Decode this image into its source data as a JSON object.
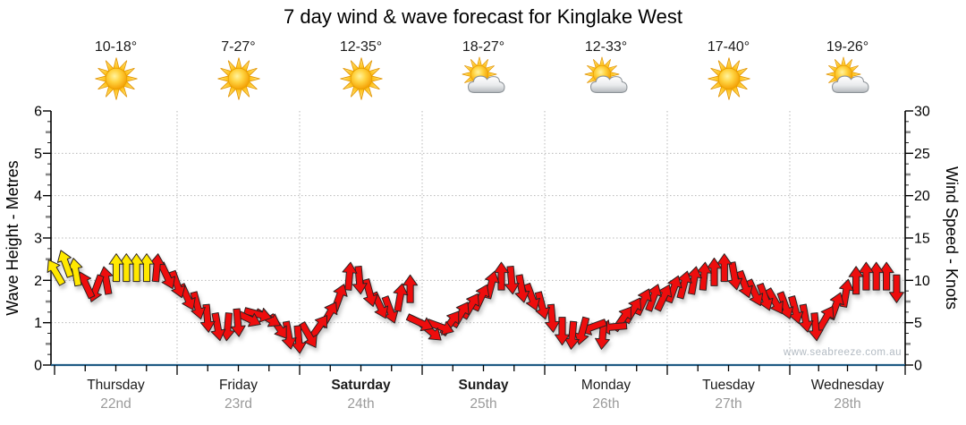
{
  "title": "7 day wind & wave forecast for Kinglake West",
  "watermark": "www.seabreeze.com.au",
  "days": [
    {
      "name": "Thursday",
      "date": "22nd",
      "temp": "10-18°",
      "icon": "sunny",
      "bold": false
    },
    {
      "name": "Friday",
      "date": "23rd",
      "temp": "7-27°",
      "icon": "sunny",
      "bold": false
    },
    {
      "name": "Saturday",
      "date": "24th",
      "temp": "12-35°",
      "icon": "sunny",
      "bold": true
    },
    {
      "name": "Sunday",
      "date": "25th",
      "temp": "18-27°",
      "icon": "partly-cloudy",
      "bold": true
    },
    {
      "name": "Monday",
      "date": "26th",
      "temp": "12-33°",
      "icon": "partly-cloudy",
      "bold": false
    },
    {
      "name": "Tuesday",
      "date": "27th",
      "temp": "17-40°",
      "icon": "sunny",
      "bold": false
    },
    {
      "name": "Wednesday",
      "date": "28th",
      "temp": "19-26°",
      "icon": "partly-cloudy",
      "bold": false
    }
  ],
  "axes": {
    "left": {
      "label": "Wave Height - Metres",
      "ticks": [
        "0",
        "1",
        "2",
        "3",
        "4",
        "5",
        "6"
      ]
    },
    "right": {
      "label": "Wind Speed - Knots",
      "ticks": [
        "0",
        "5",
        "10",
        "15",
        "20",
        "25",
        "30"
      ]
    }
  },
  "colors": {
    "arrow_red": "#ee1111",
    "arrow_yellow": "#ffe800",
    "arrow_outline": "#2a2020",
    "axis_bottom": "#1f5b84",
    "axis": "#000000",
    "grid": "#b8b8b8",
    "minor_tick": "#8a8a8a",
    "date_text": "#9a9a9a",
    "watermark_text": "#b3bbc3"
  },
  "chart_data": {
    "type": "scatter",
    "marker": "wind-direction-arrow",
    "title": "7 day wind & wave forecast for Kinglake West",
    "categories": [
      "Thursday 22nd",
      "Friday 23rd",
      "Saturday 24th",
      "Sunday 25th",
      "Monday 26th",
      "Tuesday 27th",
      "Wednesday 28th"
    ],
    "y_axis_left": {
      "label": "Wave Height - Metres",
      "range": [
        0,
        6
      ],
      "grid": "dotted"
    },
    "y_axis_right": {
      "label": "Wind Speed - Knots",
      "range": [
        0,
        30
      ],
      "grid": "dotted"
    },
    "points_per_day": 12,
    "series_format": [
      "wind_speed_knots",
      "direction_deg_cw_from_up",
      "color"
    ],
    "series": [
      [
        11,
        -30,
        "yellow"
      ],
      [
        12,
        -20,
        "yellow"
      ],
      [
        11,
        -10,
        "yellow"
      ],
      [
        9.5,
        -25,
        "red"
      ],
      [
        9,
        200,
        "red"
      ],
      [
        10,
        -10,
        "red"
      ],
      [
        11.5,
        0,
        "yellow"
      ],
      [
        11.5,
        0,
        "yellow"
      ],
      [
        11.5,
        0,
        "yellow"
      ],
      [
        11.5,
        0,
        "yellow"
      ],
      [
        11.5,
        5,
        "red"
      ],
      [
        10.5,
        155,
        "red"
      ],
      [
        9.5,
        160,
        "red"
      ],
      [
        8,
        155,
        "red"
      ],
      [
        7,
        165,
        "red"
      ],
      [
        5.5,
        175,
        "red"
      ],
      [
        4.5,
        170,
        "red"
      ],
      [
        4.5,
        185,
        "red"
      ],
      [
        5,
        175,
        "red"
      ],
      [
        5.5,
        115,
        "red"
      ],
      [
        6,
        105,
        "red"
      ],
      [
        5.5,
        120,
        "red"
      ],
      [
        4.5,
        145,
        "red"
      ],
      [
        3.5,
        170,
        "red"
      ],
      [
        3,
        175,
        "red"
      ],
      [
        3.5,
        150,
        "red"
      ],
      [
        4.5,
        35,
        "red"
      ],
      [
        6,
        30,
        "red"
      ],
      [
        8,
        20,
        "red"
      ],
      [
        10.5,
        5,
        "red"
      ],
      [
        10,
        175,
        "red"
      ],
      [
        8.5,
        165,
        "red"
      ],
      [
        7,
        155,
        "red"
      ],
      [
        6.5,
        160,
        "red"
      ],
      [
        8,
        10,
        "red"
      ],
      [
        9,
        0,
        "red"
      ],
      [
        5,
        115,
        "red"
      ],
      [
        4,
        130,
        "red"
      ],
      [
        4.5,
        110,
        "red"
      ],
      [
        5,
        35,
        "red"
      ],
      [
        6,
        30,
        "red"
      ],
      [
        7,
        30,
        "red"
      ],
      [
        8,
        25,
        "red"
      ],
      [
        9.5,
        15,
        "red"
      ],
      [
        10.5,
        0,
        "red"
      ],
      [
        10,
        175,
        "red"
      ],
      [
        9,
        170,
        "red"
      ],
      [
        8,
        160,
        "red"
      ],
      [
        7,
        165,
        "red"
      ],
      [
        5.5,
        175,
        "red"
      ],
      [
        4,
        180,
        "red"
      ],
      [
        3.5,
        185,
        "red"
      ],
      [
        4,
        195,
        "red"
      ],
      [
        4.5,
        250,
        "red"
      ],
      [
        3.5,
        185,
        "red"
      ],
      [
        4.5,
        265,
        "red"
      ],
      [
        5.5,
        35,
        "red"
      ],
      [
        6.5,
        30,
        "red"
      ],
      [
        7.5,
        25,
        "red"
      ],
      [
        8,
        20,
        "red"
      ],
      [
        8,
        25,
        "red"
      ],
      [
        9,
        20,
        "red"
      ],
      [
        9.5,
        15,
        "red"
      ],
      [
        10,
        10,
        "red"
      ],
      [
        10.5,
        5,
        "red"
      ],
      [
        11,
        0,
        "red"
      ],
      [
        11.5,
        0,
        "red"
      ],
      [
        10.5,
        170,
        "red"
      ],
      [
        9.5,
        160,
        "red"
      ],
      [
        8.5,
        155,
        "red"
      ],
      [
        8,
        160,
        "red"
      ],
      [
        7.5,
        150,
        "red"
      ],
      [
        7,
        160,
        "red"
      ],
      [
        6.5,
        165,
        "red"
      ],
      [
        5.5,
        170,
        "red"
      ],
      [
        4.5,
        175,
        "red"
      ],
      [
        5.5,
        30,
        "red"
      ],
      [
        7,
        20,
        "red"
      ],
      [
        8.5,
        10,
        "red"
      ],
      [
        10,
        0,
        "red"
      ],
      [
        10.5,
        0,
        "red"
      ],
      [
        10.5,
        0,
        "red"
      ],
      [
        10.5,
        0,
        "red"
      ],
      [
        9,
        180,
        "red"
      ]
    ]
  }
}
